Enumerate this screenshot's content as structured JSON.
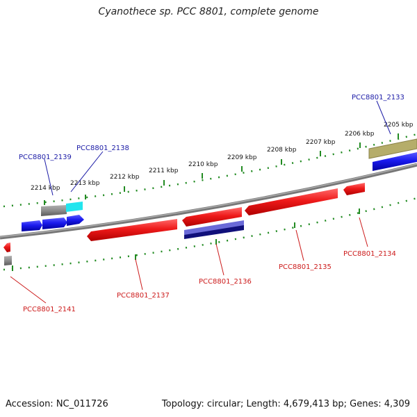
{
  "title": "Cyanothece sp. PCC 8801, complete genome",
  "footer": {
    "accession": "Accession: NC_011726",
    "topology": "Topology: circular; Length: 4,679,413 bp; Genes: 4,309"
  },
  "scale_labels": [
    "2205 kbp",
    "2206 kbp",
    "2207 kbp",
    "2208 kbp",
    "2209 kbp",
    "2210 kbp",
    "2211 kbp",
    "2212 kbp",
    "2213 kbp",
    "2214 kbp"
  ],
  "gene_labels_top": [
    "PCC8801_2133",
    "PCC8801_2138",
    "PCC8801_2139"
  ],
  "gene_labels_bottom": [
    "PCC8801_2134",
    "PCC8801_2135",
    "PCC8801_2136",
    "PCC8801_2137",
    "PCC8801_2141"
  ],
  "colors": {
    "genome_track": "#808080",
    "forward_gene": "#1a1aee",
    "reverse_gene": "#ee1a1a",
    "label_forward": "#1a1aa6",
    "label_reverse": "#cc1a1a",
    "tick": "#228b22"
  }
}
